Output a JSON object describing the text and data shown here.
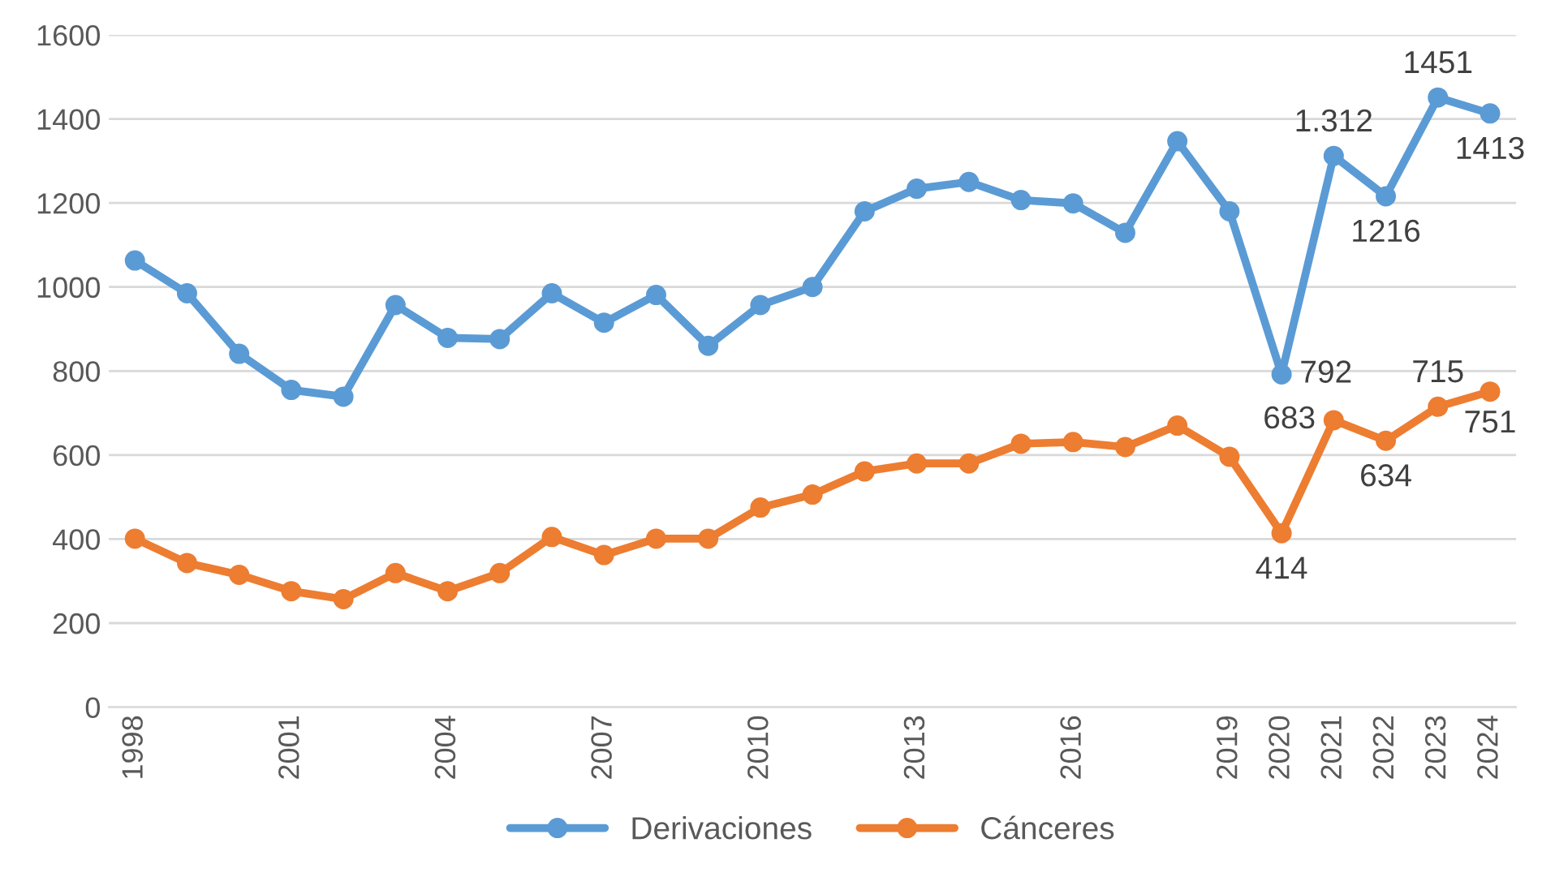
{
  "chart_data": {
    "type": "line",
    "categories": [
      "1998",
      null,
      null,
      "2001",
      null,
      null,
      "2004",
      null,
      null,
      "2007",
      null,
      null,
      "2010",
      null,
      null,
      "2013",
      null,
      null,
      "2016",
      null,
      null,
      "2019",
      "2020",
      "2021",
      "2022",
      "2023",
      "2024"
    ],
    "series": [
      {
        "name": "Derivaciones",
        "color": "#5b9bd5",
        "values": [
          1063,
          985,
          841,
          755,
          739,
          957,
          879,
          876,
          985,
          915,
          981,
          860,
          957,
          1000,
          1180,
          1234,
          1250,
          1207,
          1199,
          1129,
          1347,
          1180,
          792,
          1312,
          1216,
          1451,
          1413
        ],
        "value_labels": [
          null,
          null,
          null,
          null,
          null,
          null,
          null,
          null,
          null,
          null,
          null,
          null,
          null,
          null,
          null,
          null,
          null,
          null,
          null,
          null,
          null,
          null,
          "792",
          "1.312",
          "1216",
          "1451",
          "1413"
        ]
      },
      {
        "name": "Cánceres",
        "color": "#ed7d31",
        "values": [
          401,
          343,
          315,
          276,
          257,
          319,
          276,
          319,
          405,
          362,
          401,
          401,
          475,
          506,
          561,
          580,
          580,
          627,
          631,
          619,
          670,
          596,
          414,
          683,
          634,
          715,
          751
        ],
        "value_labels": [
          null,
          null,
          null,
          null,
          null,
          null,
          null,
          null,
          null,
          null,
          null,
          null,
          null,
          null,
          null,
          null,
          null,
          null,
          null,
          null,
          null,
          null,
          "414",
          "683",
          "634",
          "715",
          "751"
        ]
      }
    ],
    "ylim": [
      0,
      1600
    ],
    "yticks": [
      0,
      200,
      400,
      600,
      800,
      1000,
      1200,
      1400,
      1600
    ],
    "grid": "y",
    "legend": "bottom",
    "marker": "circle",
    "line_style": "solid"
  }
}
